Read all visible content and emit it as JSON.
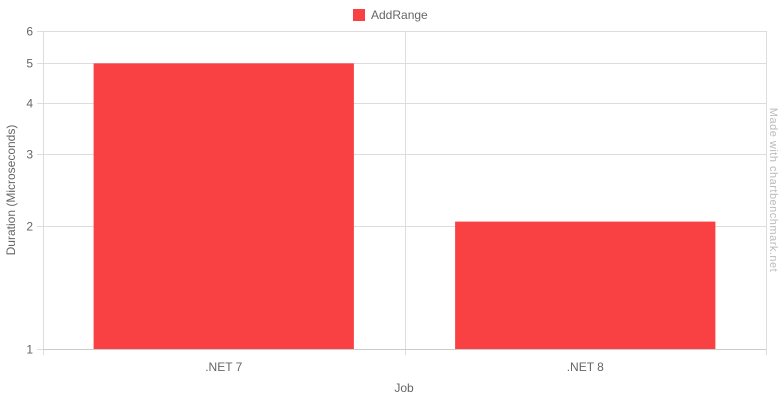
{
  "chart_data": {
    "type": "bar",
    "categories": [
      ".NET 7",
      ".NET 8"
    ],
    "series": [
      {
        "name": "AddRange",
        "values": [
          5.0,
          2.05
        ],
        "color": "#f94144"
      }
    ],
    "xlabel": "Job",
    "ylabel": "Duration (Microseconds)",
    "y_scale": "log",
    "ylim": [
      1,
      6
    ],
    "y_ticks": [
      1,
      2,
      3,
      4,
      5,
      6
    ],
    "grid": true,
    "legend_position": "top-center"
  },
  "watermark": "Made with chartbenchmark.net"
}
